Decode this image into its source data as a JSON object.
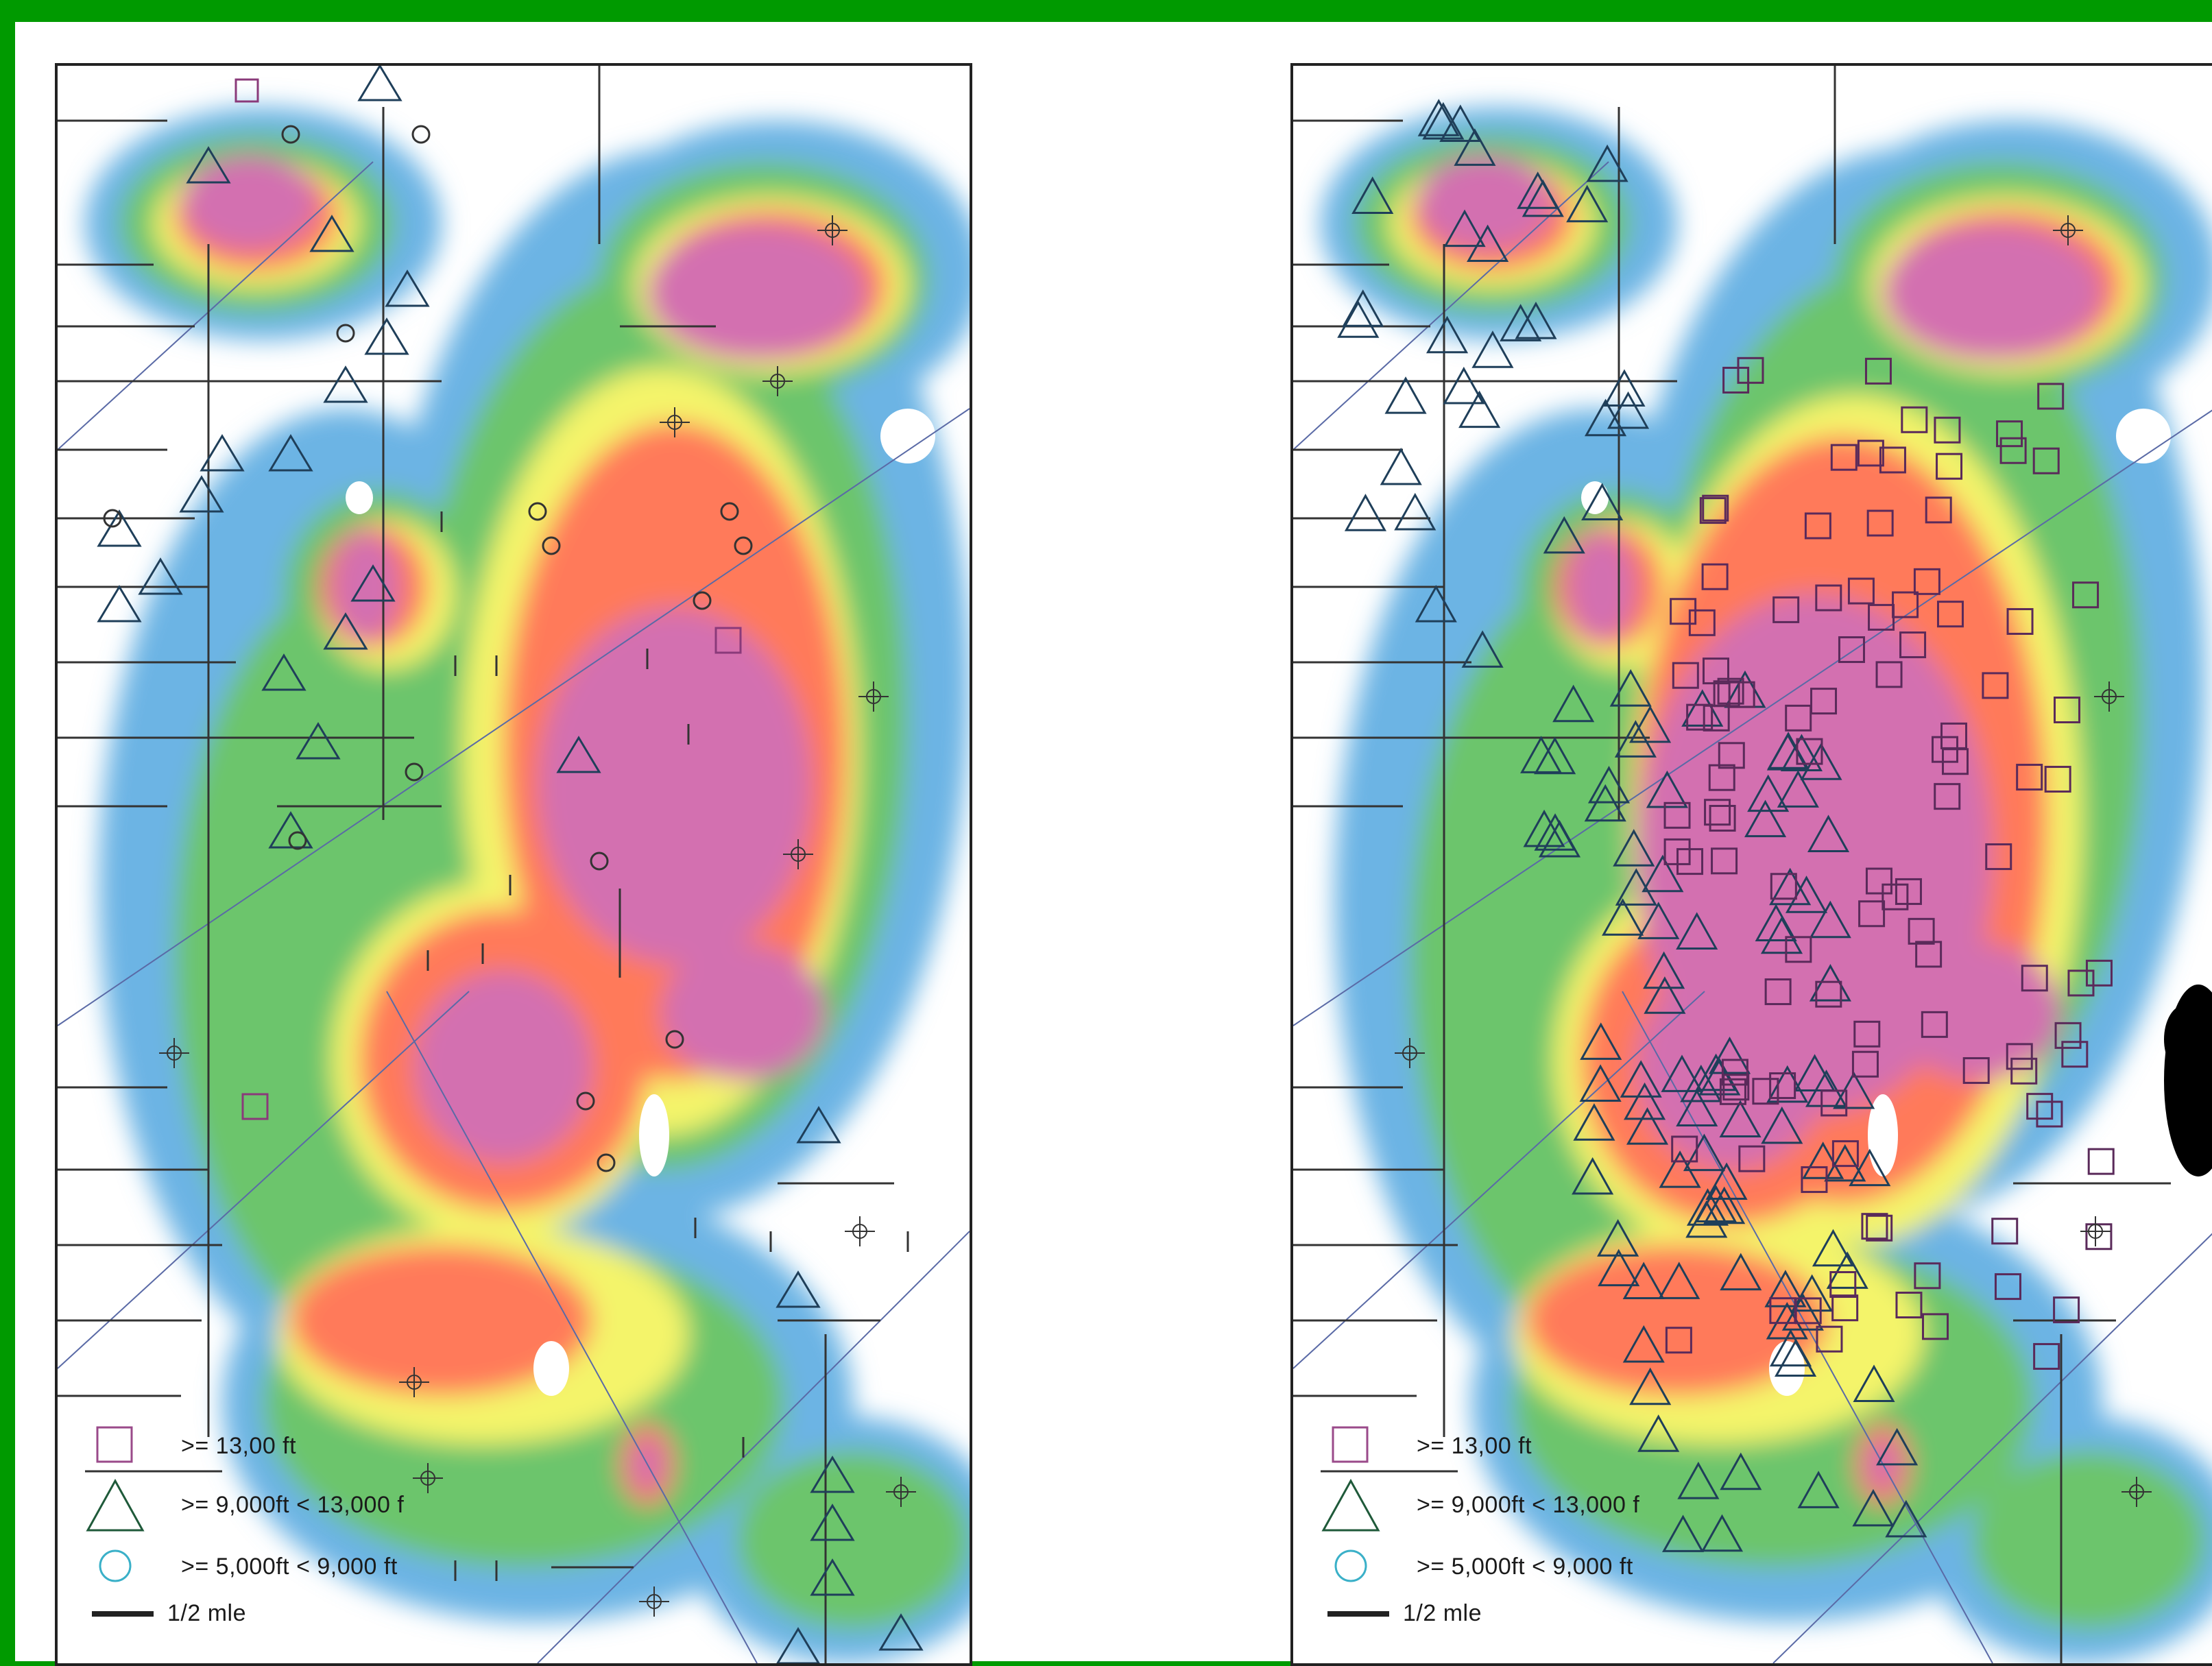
{
  "colors": {
    "border_green": "#009a00",
    "magenta": "#d36fb0",
    "red": "#ff5a5a",
    "orange": "#ffb347",
    "yellow": "#f4f46a",
    "green": "#6cc56c",
    "blue": "#6cb4e4",
    "legend_square": "#9a4a8a",
    "legend_triangle": "#1f5a3a",
    "legend_circle": "#3ab0c8"
  },
  "legend": {
    "square_label": ">= 13,00 ft",
    "triangle_label": ">= 9,000ft < 13,000 f",
    "circle_label": ">= 5,000ft < 9,000 ft",
    "scale_label": "1/2 mle"
  },
  "legend_right": {
    "square_label": ">= 13,00 ft",
    "triangle_label": ">= 9,000ft < 13,000 f",
    "circle_label": ">= 5,000ft < 9,000 ft",
    "scale_label": "1/2 mle"
  },
  "icons": {
    "square": "square-marker-icon",
    "triangle": "triangle-marker-icon",
    "circle": "circle-marker-icon",
    "scale": "scale-bar-icon"
  }
}
